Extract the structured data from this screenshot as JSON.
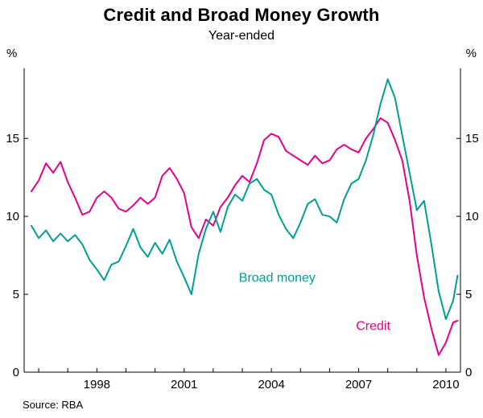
{
  "chart_data": {
    "type": "line",
    "title": "Credit and Broad Money Growth",
    "subtitle": "Year-ended",
    "source": "Source: RBA",
    "y_unit": "%",
    "ylim": [
      0,
      19.5
    ],
    "xlim": [
      1995.5,
      2010.5
    ],
    "yticks": [
      0,
      5,
      10,
      15
    ],
    "xticks": [
      1998,
      2001,
      2004,
      2007,
      2010
    ],
    "x_minor_tick_start": 1996,
    "x_minor_tick_end": 2010,
    "grid": false,
    "legend_position": "inline-labels",
    "axis_color": "#000000",
    "x": [
      1995.75,
      1996.0,
      1996.25,
      1996.5,
      1996.75,
      1997.0,
      1997.25,
      1997.5,
      1997.75,
      1998.0,
      1998.25,
      1998.5,
      1998.75,
      1999.0,
      1999.25,
      1999.5,
      1999.75,
      2000.0,
      2000.25,
      2000.5,
      2000.75,
      2001.0,
      2001.25,
      2001.5,
      2001.75,
      2002.0,
      2002.25,
      2002.5,
      2002.75,
      2003.0,
      2003.25,
      2003.5,
      2003.75,
      2004.0,
      2004.25,
      2004.5,
      2004.75,
      2005.0,
      2005.25,
      2005.5,
      2005.75,
      2006.0,
      2006.25,
      2006.5,
      2006.75,
      2007.0,
      2007.25,
      2007.5,
      2007.75,
      2008.0,
      2008.25,
      2008.5,
      2008.75,
      2009.0,
      2009.25,
      2009.5,
      2009.75,
      2010.0,
      2010.25,
      2010.4
    ],
    "series": [
      {
        "name": "Credit",
        "label": "Credit",
        "color": "#e4008a",
        "label_x": 2007.5,
        "label_y": 2.7,
        "values": [
          11.6,
          12.3,
          13.4,
          12.8,
          13.5,
          12.2,
          11.2,
          10.1,
          10.3,
          11.2,
          11.6,
          11.2,
          10.5,
          10.3,
          10.7,
          11.2,
          10.8,
          11.2,
          12.6,
          13.1,
          12.4,
          11.5,
          9.3,
          8.6,
          9.8,
          9.4,
          10.6,
          11.2,
          12.0,
          12.6,
          12.2,
          13.4,
          14.9,
          15.3,
          15.1,
          14.2,
          13.9,
          13.6,
          13.3,
          13.9,
          13.4,
          13.6,
          14.3,
          14.6,
          14.3,
          14.1,
          15.0,
          15.6,
          16.3,
          16.0,
          14.9,
          13.6,
          11.0,
          7.5,
          4.8,
          2.8,
          1.1,
          1.9,
          3.2,
          3.3
        ]
      },
      {
        "name": "Broad money",
        "label": "Broad money",
        "color": "#009e94",
        "label_x": 2004.2,
        "label_y": 5.8,
        "values": [
          9.4,
          8.6,
          9.1,
          8.4,
          8.9,
          8.4,
          8.8,
          8.2,
          7.2,
          6.6,
          5.9,
          6.9,
          7.1,
          8.1,
          9.2,
          8.0,
          7.4,
          8.3,
          7.6,
          8.5,
          7.1,
          6.1,
          5.0,
          7.6,
          9.2,
          10.3,
          9.0,
          10.6,
          11.4,
          11.0,
          12.1,
          12.4,
          11.7,
          11.4,
          10.1,
          9.2,
          8.6,
          9.6,
          10.8,
          11.1,
          10.1,
          10.0,
          9.6,
          11.1,
          12.1,
          12.4,
          13.6,
          15.2,
          17.2,
          18.8,
          17.6,
          15.2,
          12.8,
          10.4,
          11.0,
          8.2,
          5.2,
          3.4,
          4.6,
          6.2
        ]
      }
    ]
  }
}
